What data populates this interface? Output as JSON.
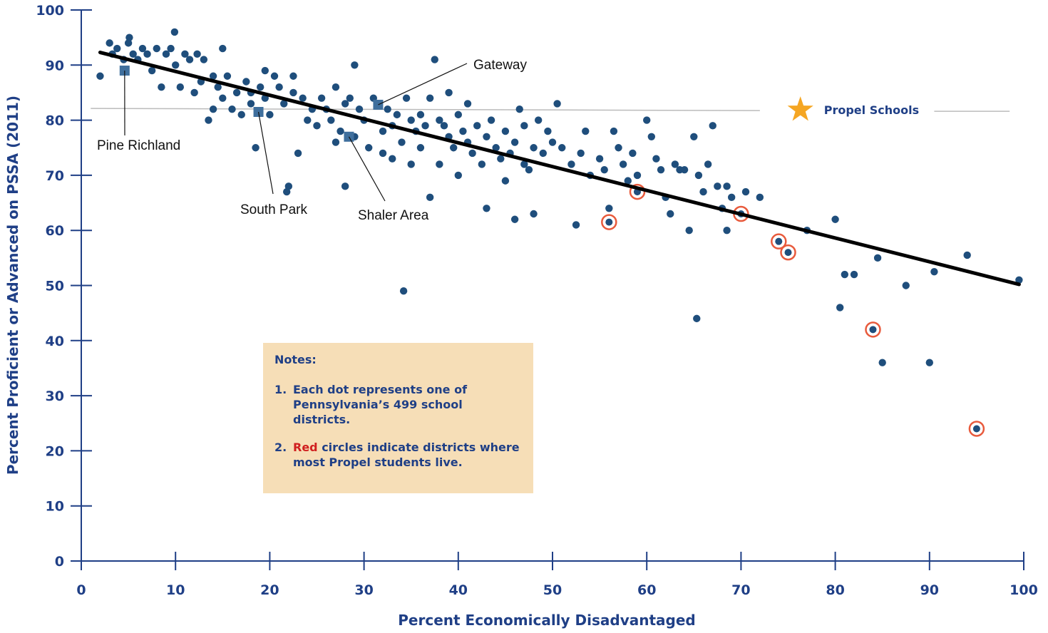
{
  "chart_data": {
    "type": "scatter",
    "xlabel": "Percent Economically Disadvantaged",
    "ylabel": "Percent Proficient or Advanced on PSSA (2011)",
    "xlim": [
      0,
      100
    ],
    "ylim": [
      0,
      100
    ],
    "xticks": [
      "0",
      "10",
      "20",
      "30",
      "40",
      "50",
      "60",
      "70",
      "80",
      "90",
      "100"
    ],
    "yticks": [
      "0",
      "10",
      "20",
      "30",
      "40",
      "50",
      "60",
      "70",
      "80",
      "90",
      "100"
    ],
    "grid": false,
    "trend_line": {
      "x": [
        2,
        99.5
      ],
      "y": [
        92.3,
        50.2
      ],
      "color": "#000000"
    },
    "reference_line": {
      "y": 82,
      "label": "Propel Schools",
      "marker": "star",
      "marker_color": "#f5a623",
      "line_color": "#bbbbbb"
    },
    "point_color": "#1f4e7c",
    "highlight_color": "#e85a3c",
    "series": [
      {
        "points": [
          [
            2,
            88
          ],
          [
            3,
            94
          ],
          [
            3.3,
            92
          ],
          [
            3.8,
            93
          ],
          [
            4.5,
            91
          ],
          [
            5,
            94
          ],
          [
            5.1,
            95
          ],
          [
            5.5,
            92
          ],
          [
            6,
            91
          ],
          [
            6.5,
            93
          ],
          [
            7,
            92
          ],
          [
            7.5,
            89
          ],
          [
            8,
            93
          ],
          [
            8.5,
            86
          ],
          [
            9,
            92
          ],
          [
            9.5,
            93
          ],
          [
            9.9,
            96
          ],
          [
            10,
            90
          ],
          [
            10.5,
            86
          ],
          [
            11,
            92
          ],
          [
            11.5,
            91
          ],
          [
            12,
            85
          ],
          [
            12.3,
            92
          ],
          [
            12.7,
            87
          ],
          [
            13,
            91
          ],
          [
            13.5,
            80
          ],
          [
            14,
            82
          ],
          [
            14,
            88
          ],
          [
            14.5,
            86
          ],
          [
            15,
            84
          ],
          [
            15,
            93
          ],
          [
            15.5,
            88
          ],
          [
            16,
            82
          ],
          [
            16.5,
            85
          ],
          [
            17,
            81
          ],
          [
            17.5,
            87
          ],
          [
            18,
            85
          ],
          [
            18,
            83
          ],
          [
            18.5,
            75
          ],
          [
            19,
            86
          ],
          [
            19.5,
            84
          ],
          [
            19.5,
            89
          ],
          [
            20,
            81
          ],
          [
            20.5,
            88
          ],
          [
            21,
            86
          ],
          [
            21.5,
            83
          ],
          [
            21.8,
            67
          ],
          [
            22,
            68
          ],
          [
            22.5,
            85
          ],
          [
            22.5,
            88
          ],
          [
            23,
            74
          ],
          [
            23.5,
            84
          ],
          [
            24,
            80
          ],
          [
            24.5,
            82
          ],
          [
            25,
            79
          ],
          [
            25.5,
            84
          ],
          [
            26,
            82
          ],
          [
            26.5,
            80
          ],
          [
            27,
            86
          ],
          [
            27,
            76
          ],
          [
            27.5,
            78
          ],
          [
            28,
            83
          ],
          [
            28,
            68
          ],
          [
            28.5,
            84
          ],
          [
            29,
            77
          ],
          [
            29,
            90
          ],
          [
            29.5,
            82
          ],
          [
            30,
            80
          ],
          [
            30.5,
            75
          ],
          [
            31,
            84
          ],
          [
            31.5,
            83
          ],
          [
            32,
            78
          ],
          [
            32,
            74
          ],
          [
            32.5,
            82
          ],
          [
            33,
            79
          ],
          [
            33,
            73
          ],
          [
            33.5,
            81
          ],
          [
            34,
            76
          ],
          [
            34.2,
            49
          ],
          [
            34.5,
            84
          ],
          [
            35,
            72
          ],
          [
            35,
            80
          ],
          [
            35.5,
            78
          ],
          [
            36,
            81
          ],
          [
            36,
            75
          ],
          [
            36.5,
            79
          ],
          [
            37,
            66
          ],
          [
            37,
            84
          ],
          [
            37.5,
            91
          ],
          [
            38,
            80
          ],
          [
            38,
            72
          ],
          [
            38.5,
            79
          ],
          [
            39,
            77
          ],
          [
            39,
            85
          ],
          [
            39.5,
            75
          ],
          [
            40,
            81
          ],
          [
            40,
            70
          ],
          [
            40.5,
            78
          ],
          [
            41,
            76
          ],
          [
            41,
            83
          ],
          [
            41.5,
            74
          ],
          [
            42,
            79
          ],
          [
            42.5,
            72
          ],
          [
            43,
            77
          ],
          [
            43,
            64
          ],
          [
            43.5,
            80
          ],
          [
            44,
            75
          ],
          [
            44.5,
            73
          ],
          [
            45,
            78
          ],
          [
            45,
            69
          ],
          [
            45.5,
            74
          ],
          [
            46,
            76
          ],
          [
            46,
            62
          ],
          [
            46.5,
            82
          ],
          [
            47,
            79
          ],
          [
            47,
            72
          ],
          [
            47.5,
            71
          ],
          [
            48,
            75
          ],
          [
            48,
            63
          ],
          [
            48.5,
            80
          ],
          [
            49,
            74
          ],
          [
            49.5,
            78
          ],
          [
            50,
            76
          ],
          [
            50.5,
            83
          ],
          [
            51,
            75
          ],
          [
            52,
            72
          ],
          [
            52.5,
            61
          ],
          [
            53,
            74
          ],
          [
            53.5,
            78
          ],
          [
            54,
            70
          ],
          [
            55,
            73
          ],
          [
            55.5,
            71
          ],
          [
            56,
            64
          ],
          [
            56.5,
            78
          ],
          [
            57,
            75
          ],
          [
            57.5,
            72
          ],
          [
            58,
            69
          ],
          [
            58.5,
            74
          ],
          [
            59,
            70
          ],
          [
            60,
            80
          ],
          [
            60.5,
            77
          ],
          [
            61,
            73
          ],
          [
            61.5,
            71
          ],
          [
            62,
            66
          ],
          [
            62.5,
            63
          ],
          [
            63,
            72
          ],
          [
            63.5,
            71
          ],
          [
            64,
            71
          ],
          [
            64.5,
            60
          ],
          [
            65,
            77
          ],
          [
            65.3,
            44
          ],
          [
            65.5,
            70
          ],
          [
            66,
            67
          ],
          [
            66.5,
            72
          ],
          [
            67,
            79
          ],
          [
            67.5,
            68
          ],
          [
            68,
            64
          ],
          [
            68.5,
            68
          ],
          [
            68.5,
            60
          ],
          [
            69,
            66
          ],
          [
            70,
            63
          ],
          [
            70.5,
            67
          ],
          [
            72,
            66
          ],
          [
            77,
            60
          ],
          [
            80,
            62
          ],
          [
            80.5,
            46
          ],
          [
            81,
            52
          ],
          [
            82,
            52
          ],
          [
            84.5,
            55
          ],
          [
            85,
            36
          ],
          [
            87.5,
            50
          ],
          [
            90,
            36
          ],
          [
            90.5,
            52.5
          ],
          [
            94,
            55.5
          ],
          [
            99.5,
            51
          ]
        ]
      },
      {
        "name": "Red circles",
        "points": [
          [
            56,
            61.5
          ],
          [
            59,
            67
          ],
          [
            70,
            63
          ],
          [
            74,
            58
          ],
          [
            75,
            56
          ],
          [
            84,
            42
          ],
          [
            95,
            24
          ]
        ]
      }
    ],
    "callouts": [
      {
        "label": "Pine Richland",
        "x": 4.6,
        "y": 89
      },
      {
        "label": "South Park",
        "x": 18.8,
        "y": 81.5
      },
      {
        "label": "Shaler Area",
        "x": 28.4,
        "y": 77
      },
      {
        "label": "Gateway",
        "x": 31.5,
        "y": 82.8
      }
    ]
  },
  "notes": {
    "title": "Notes:",
    "items": [
      {
        "number": "1.",
        "text": "Each dot represents one of Pennsylvania’s 499 school districts."
      },
      {
        "number": "2.",
        "emphasis": "Red",
        "text": " circles indicate districts where most Propel students live."
      }
    ]
  }
}
